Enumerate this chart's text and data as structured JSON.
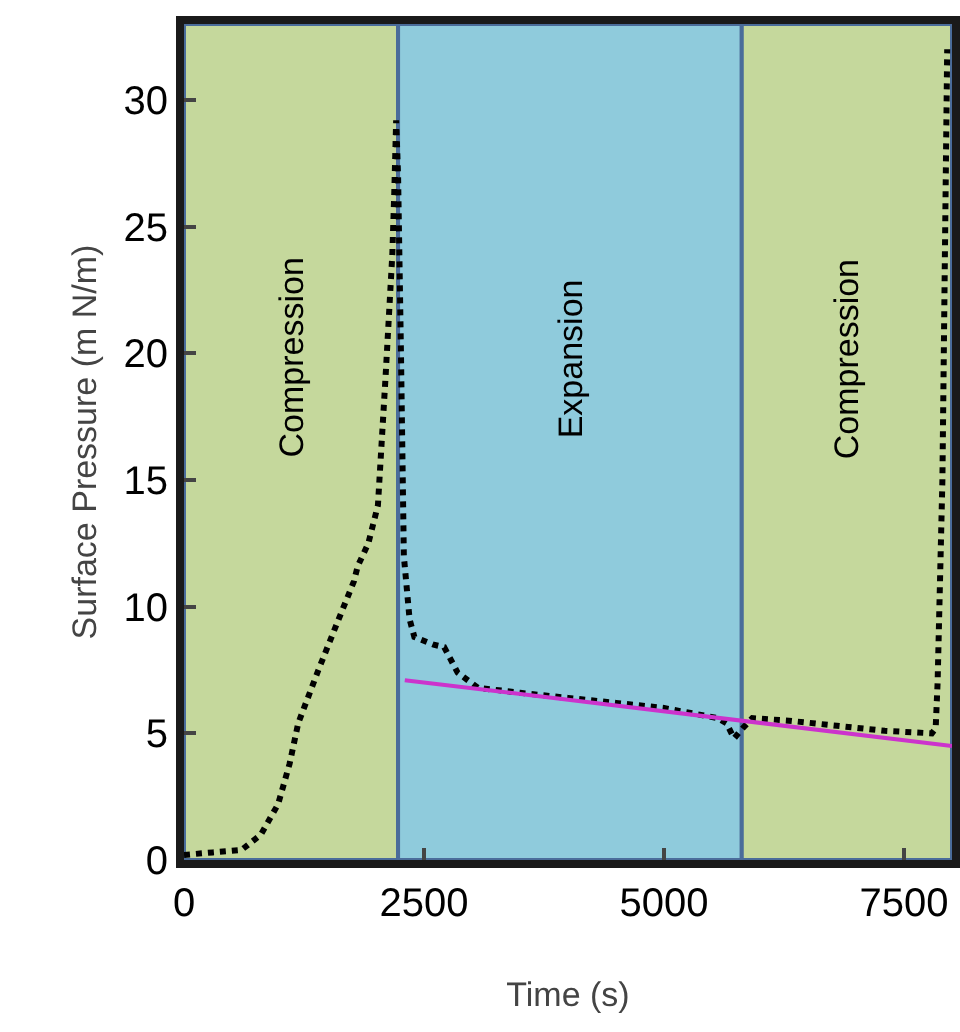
{
  "chart_data": {
    "type": "line",
    "xlabel": "Time (s)",
    "ylabel": "Surface Pressure (m N/m)",
    "xlim": [
      0,
      8000
    ],
    "ylim": [
      0,
      33
    ],
    "xticks": [
      0,
      2500,
      5000,
      7500
    ],
    "yticks": [
      0,
      5,
      10,
      15,
      20,
      25,
      30
    ],
    "grid": false,
    "bands": [
      {
        "axis": "x",
        "from": 0,
        "to": 2230,
        "label": "Compression",
        "color": "#c5d89c"
      },
      {
        "axis": "x",
        "from": 2230,
        "to": 5810,
        "label": "Expansion",
        "color": "#8fcbdc"
      },
      {
        "axis": "x",
        "from": 5810,
        "to": 8000,
        "label": "Compression",
        "color": "#c5d89c"
      }
    ],
    "series": [
      {
        "color": "#000000",
        "line_style": "dotted",
        "x": [
          0,
          300,
          600,
          800,
          980,
          1100,
          1190,
          1300,
          1400,
          1600,
          1770,
          1810,
          1920,
          2020,
          2100,
          2170,
          2190,
          2210,
          2230,
          2260,
          2290,
          2350,
          2400,
          2600,
          2710,
          2850,
          3060,
          3500,
          4000,
          4500,
          5000,
          5560,
          5650,
          5730,
          5820,
          5920,
          6300,
          6800,
          7300,
          7790,
          7830,
          7850,
          7900,
          7950
        ],
        "values": [
          0.2,
          0.3,
          0.4,
          1.0,
          2.2,
          3.8,
          5.4,
          6.5,
          7.5,
          9.4,
          11,
          11.6,
          12.5,
          14,
          19.1,
          23.9,
          26.3,
          29.2,
          27,
          20,
          12,
          9.5,
          8.8,
          8.5,
          8.4,
          7.4,
          6.8,
          6.6,
          6.4,
          6.2,
          6.0,
          5.6,
          5.4,
          4.8,
          5.2,
          5.6,
          5.5,
          5.3,
          5.1,
          5.0,
          5.2,
          7,
          15,
          32
        ]
      },
      {
        "type": "line",
        "color": "#cc33cc",
        "line_style": "solid",
        "x": [
          2300,
          8000
        ],
        "values": [
          7.1,
          4.5
        ]
      }
    ]
  }
}
